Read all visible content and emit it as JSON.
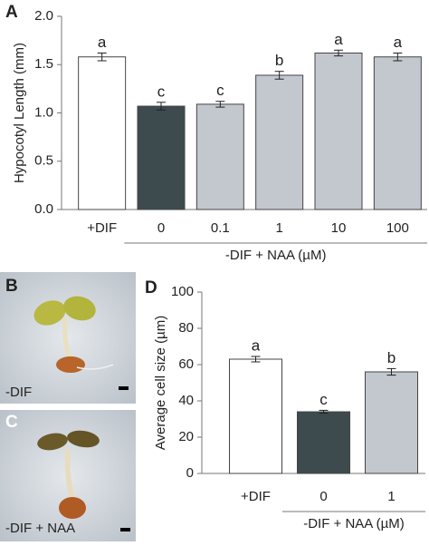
{
  "chart_data": [
    {
      "type": "bar",
      "panel_label": "A",
      "y_label": "Hypocotyl Length (mm)",
      "categories": [
        "+DIF",
        "0",
        "0.1",
        "1",
        "10",
        "100"
      ],
      "values": [
        1.58,
        1.07,
        1.09,
        1.39,
        1.62,
        1.58
      ],
      "errors": [
        0.04,
        0.04,
        0.03,
        0.04,
        0.03,
        0.04
      ],
      "annotations": [
        "a",
        "c",
        "c",
        "b",
        "a",
        "a"
      ],
      "colors": [
        "#ffffff",
        "#3d4b4e",
        "#c3c8ce",
        "#c3c8ce",
        "#c3c8ce",
        "#c3c8ce"
      ],
      "group_label": "-DIF + NAA (µM)",
      "ylim": [
        0,
        2
      ],
      "yticks": [
        {
          "value": 0,
          "label": "0.0"
        },
        {
          "value": 0.5,
          "label": "0.5"
        },
        {
          "value": 1,
          "label": "1.0"
        },
        {
          "value": 1.5,
          "label": "1.5"
        },
        {
          "value": 2,
          "label": "2.0"
        }
      ]
    },
    {
      "type": "bar",
      "panel_label": "D",
      "y_label": "Average cell size (µm)",
      "categories": [
        "+DIF",
        "0",
        "1"
      ],
      "values": [
        63,
        34,
        56
      ],
      "errors": [
        1.5,
        0.8,
        1.8
      ],
      "annotations": [
        "a",
        "c",
        "b"
      ],
      "colors": [
        "#ffffff",
        "#3d4b4e",
        "#c3c8ce"
      ],
      "group_label": "-DIF + NAA (µM)",
      "ylim": [
        0,
        100
      ],
      "yticks": [
        0,
        20,
        40,
        60,
        80,
        100
      ]
    }
  ],
  "panels": [
    {
      "label": "B",
      "caption": "-DIF"
    },
    {
      "label": "C",
      "caption": "-DIF + NAA"
    }
  ]
}
